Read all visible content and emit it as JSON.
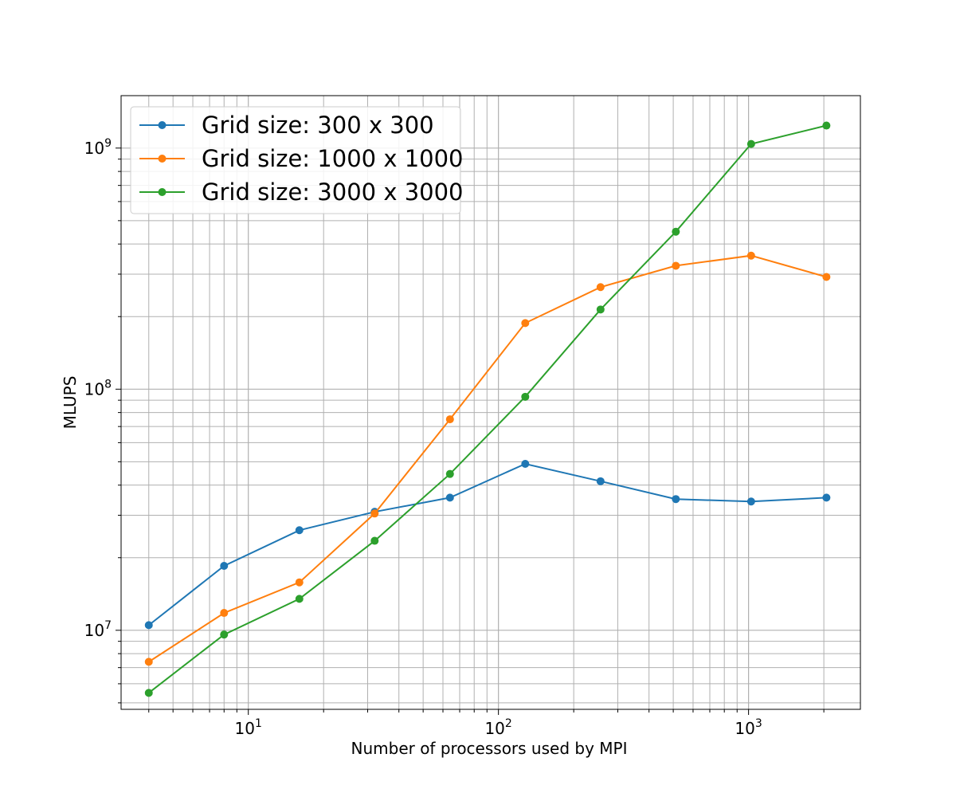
{
  "chart_data": {
    "type": "line",
    "xscale": "log",
    "yscale": "log",
    "xlabel": "Number of processors used by MPI",
    "ylabel": "MLUPS",
    "xlim": [
      3.1,
      2800
    ],
    "ylim": [
      4700000,
      1650000000
    ],
    "grid": "on (major and minor, both axes)",
    "legend_position": "upper-left",
    "x": [
      4,
      8,
      16,
      32,
      64,
      128,
      256,
      512,
      1024,
      2048
    ],
    "series": [
      {
        "name": "Grid size: 300 x 300",
        "color": "#1f77b4",
        "values": [
          10500000,
          18500000,
          26000000,
          31000000,
          35500000,
          49000000,
          41500000,
          35000000,
          34200000,
          35500000
        ]
      },
      {
        "name": "Grid size: 1000 x 1000",
        "color": "#ff7f0e",
        "values": [
          7400000,
          11800000,
          15800000,
          30500000,
          75000000,
          188000000,
          265000000,
          325000000,
          358000000,
          292000000
        ]
      },
      {
        "name": "Grid size: 3000 x 3000",
        "color": "#2ca02c",
        "values": [
          5500000,
          9600000,
          13500000,
          23500000,
          44500000,
          93000000,
          214000000,
          450000000,
          1040000000,
          1240000000
        ]
      }
    ],
    "x_tick_labels": [
      {
        "value": 10,
        "base": "10",
        "exp": "1"
      },
      {
        "value": 100,
        "base": "10",
        "exp": "2"
      },
      {
        "value": 1000,
        "base": "10",
        "exp": "3"
      }
    ],
    "y_tick_labels": [
      {
        "value": 10000000,
        "base": "10",
        "exp": "7"
      },
      {
        "value": 100000000,
        "base": "10",
        "exp": "8"
      },
      {
        "value": 1000000000,
        "base": "10",
        "exp": "9"
      }
    ]
  }
}
